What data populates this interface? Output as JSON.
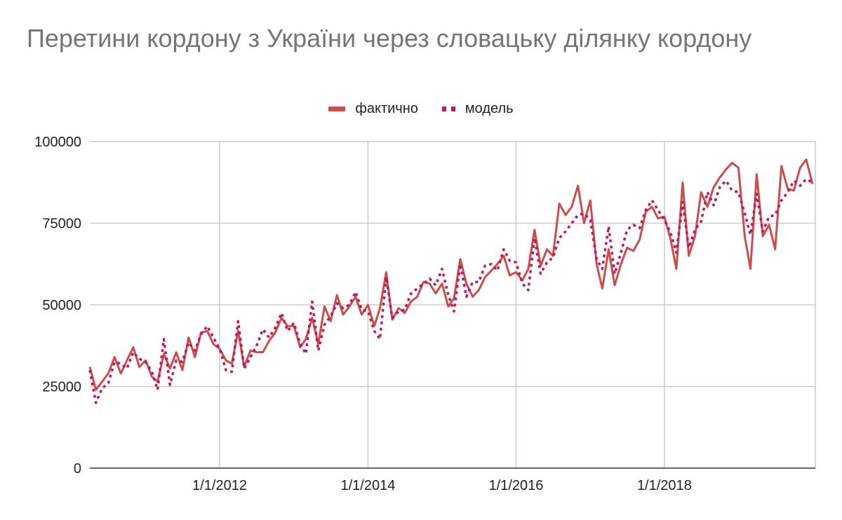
{
  "chart_data": {
    "type": "line",
    "title": "Перетини кордону з України через словацьку ділянку кордону",
    "xlabel": "",
    "ylabel": "",
    "ylim": [
      0,
      100000
    ],
    "xlim": [
      "2010-04-01",
      "2020-01-15"
    ],
    "y_ticks": [
      "0",
      "25000",
      "50000",
      "75000",
      "100000"
    ],
    "x_ticks": [
      {
        "date": "2012-01-01",
        "label": "1/1/2012"
      },
      {
        "date": "2014-01-01",
        "label": "1/1/2014"
      },
      {
        "date": "2016-01-01",
        "label": "1/1/2016"
      },
      {
        "date": "2018-01-01",
        "label": "1/1/2018"
      }
    ],
    "grid": true,
    "legend_position": "top",
    "start_month": "2010-04",
    "series": [
      {
        "name": "фактично",
        "color": "#cc4c4c",
        "style": "solid",
        "values": [
          31000,
          24000,
          26500,
          29000,
          34000,
          29000,
          33000,
          37000,
          31000,
          33000,
          28000,
          26500,
          35000,
          30500,
          35500,
          30000,
          40000,
          34000,
          41500,
          42000,
          38000,
          36500,
          33000,
          32000,
          42000,
          31000,
          36000,
          35500,
          35500,
          39000,
          41500,
          46000,
          43500,
          43500,
          37000,
          39500,
          46000,
          38000,
          49500,
          45000,
          53000,
          47000,
          49500,
          52500,
          47000,
          50000,
          43500,
          49000,
          60000,
          45500,
          49000,
          47500,
          51000,
          52500,
          57000,
          56500,
          53500,
          56500,
          49500,
          52000,
          64000,
          56500,
          52500,
          54500,
          58500,
          60500,
          62500,
          65000,
          59000,
          60000,
          57500,
          61000,
          73000,
          62000,
          67000,
          65000,
          81000,
          77500,
          80000,
          86500,
          75000,
          82000,
          62500,
          55000,
          67000,
          56000,
          62500,
          67500,
          66500,
          70000,
          78500,
          80000,
          76500,
          77000,
          70000,
          61000,
          87500,
          65000,
          71000,
          84500,
          80000,
          86000,
          89000,
          91500,
          93500,
          92000,
          71000,
          61000,
          90000,
          71000,
          74500,
          67000,
          92500,
          85500,
          85000,
          92000,
          94500,
          87000
        ]
      },
      {
        "name": "модель",
        "color": "#c2185b",
        "style": "dotted",
        "values": [
          30000,
          20000,
          24500,
          26000,
          32500,
          32000,
          30500,
          35500,
          33500,
          32500,
          29500,
          24000,
          39500,
          25500,
          33000,
          32500,
          38500,
          36000,
          41000,
          43500,
          40000,
          36500,
          30000,
          29500,
          45000,
          30500,
          34000,
          37500,
          42500,
          40000,
          43000,
          47500,
          42000,
          44500,
          38000,
          35000,
          51000,
          36000,
          44000,
          46500,
          50500,
          49000,
          50000,
          54000,
          48500,
          48000,
          42000,
          39500,
          58500,
          46000,
          48000,
          48500,
          53500,
          55000,
          56500,
          58000,
          56000,
          61000,
          53000,
          48000,
          62500,
          52500,
          57000,
          57000,
          62000,
          62500,
          60500,
          67000,
          63500,
          63000,
          56500,
          54500,
          70500,
          59500,
          63000,
          64500,
          70500,
          72500,
          75000,
          77500,
          78000,
          76000,
          64000,
          61000,
          74000,
          59500,
          66000,
          73000,
          74500,
          73500,
          79000,
          82000,
          79000,
          76000,
          72000,
          66000,
          81500,
          67500,
          73000,
          75500,
          84500,
          80500,
          86000,
          88000,
          85000,
          84500,
          78000,
          71500,
          84000,
          72500,
          77000,
          77500,
          82000,
          84500,
          88000,
          86500,
          88500,
          87500
        ]
      }
    ]
  }
}
